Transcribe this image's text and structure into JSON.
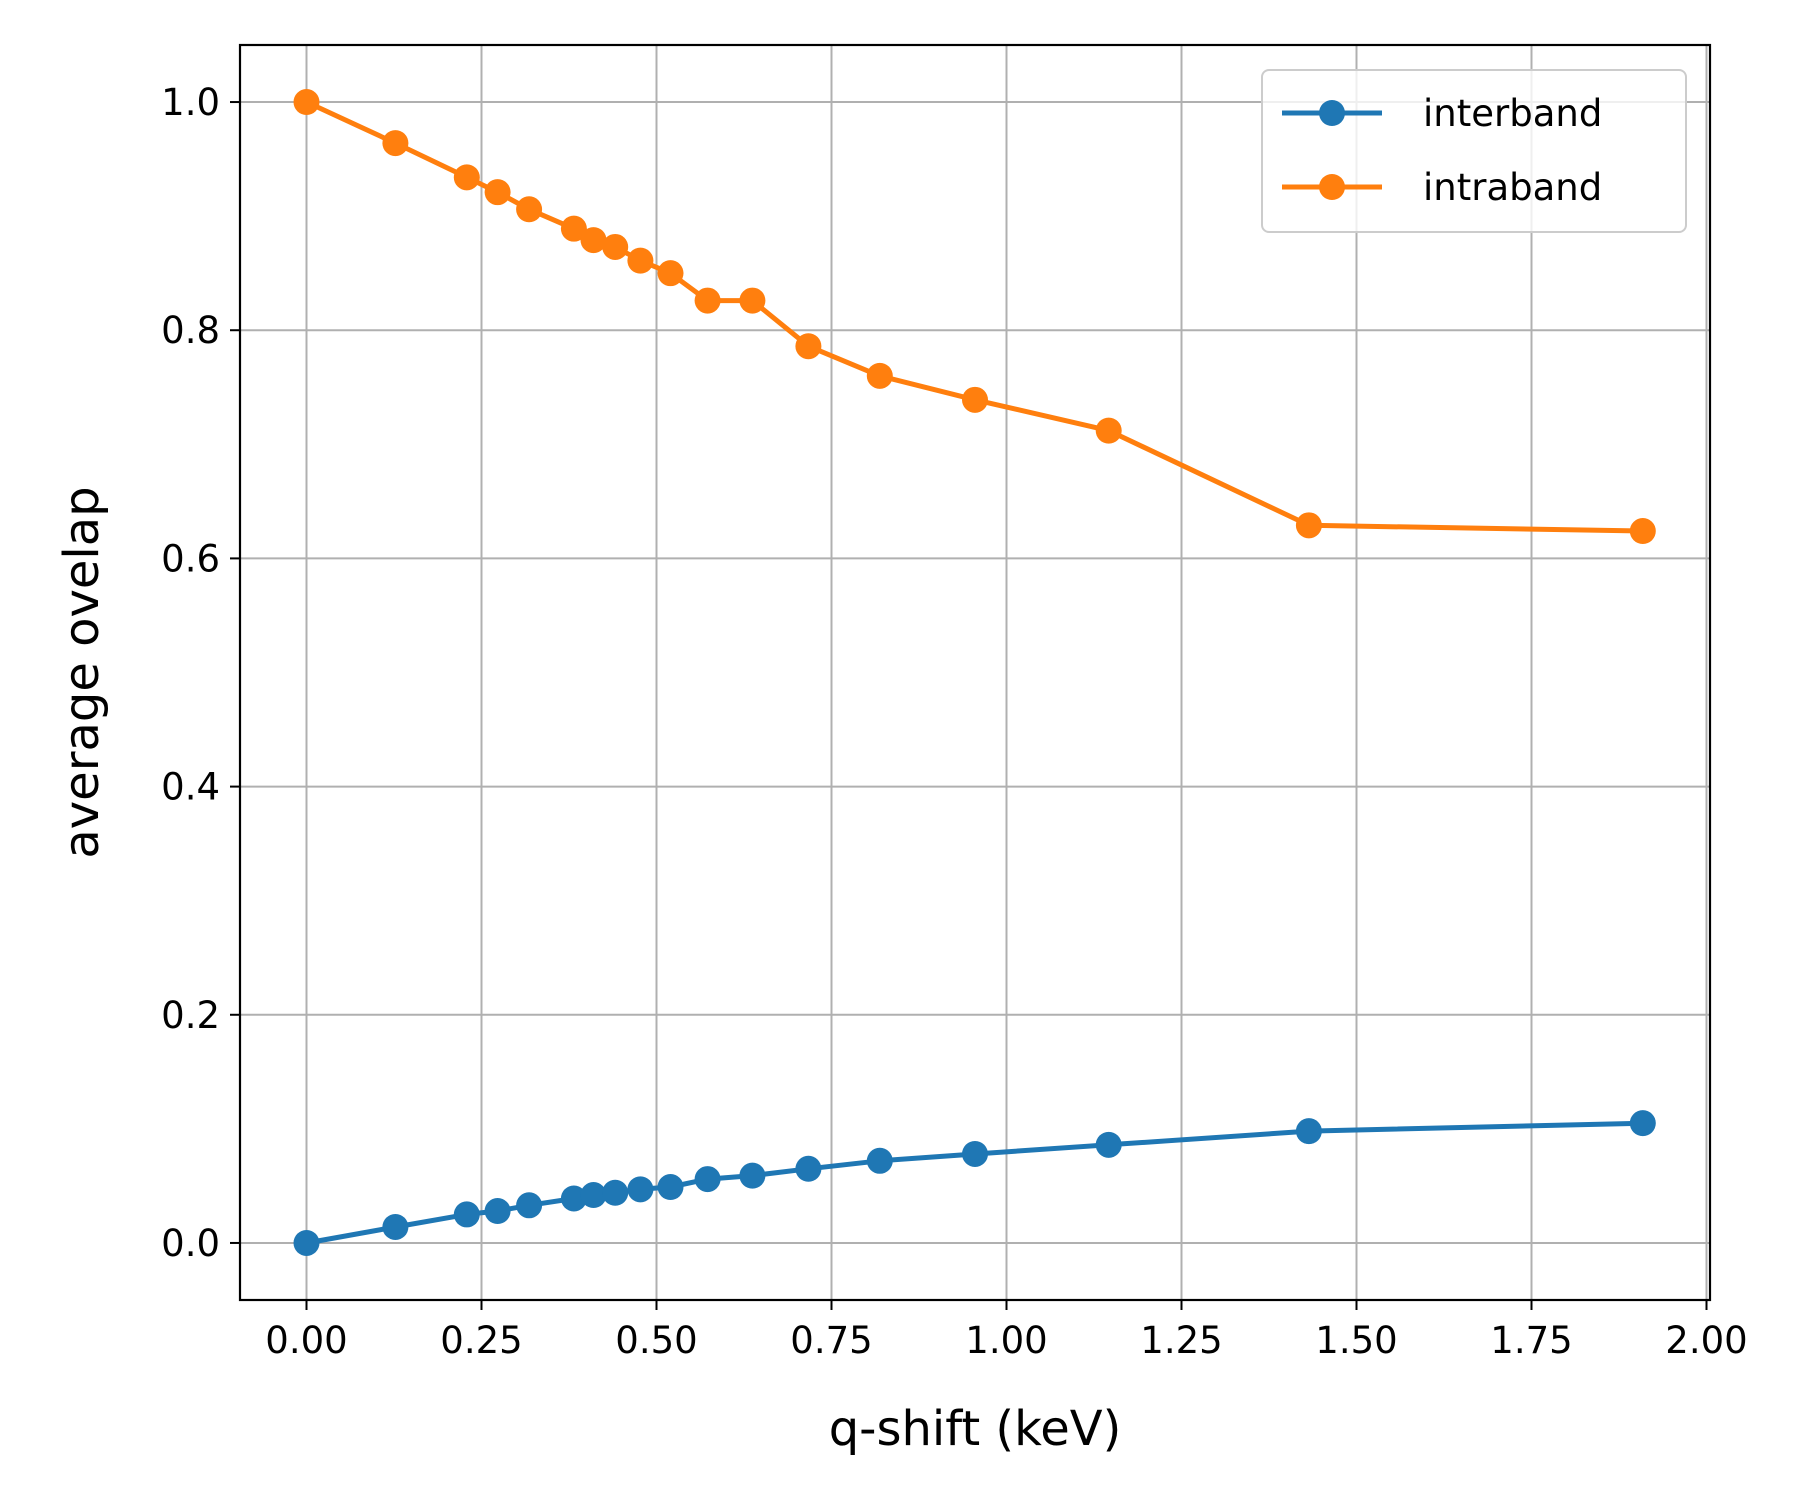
{
  "chart_data": {
    "type": "line",
    "xlabel": "q-shift (keV)",
    "ylabel": "average ovelap",
    "xlim": [
      -0.095,
      2.005
    ],
    "ylim": [
      -0.05,
      1.05
    ],
    "xticks": [
      0.0,
      0.25,
      0.5,
      0.75,
      1.0,
      1.25,
      1.5,
      1.75,
      2.0
    ],
    "xtick_labels": [
      "0.00",
      "0.25",
      "0.50",
      "0.75",
      "1.00",
      "1.25",
      "1.50",
      "1.75",
      "2.00"
    ],
    "yticks": [
      0.0,
      0.2,
      0.4,
      0.6,
      0.8,
      1.0
    ],
    "ytick_labels": [
      "0.0",
      "0.2",
      "0.4",
      "0.6",
      "0.8",
      "1.0"
    ],
    "grid": true,
    "legend_position": "top-right",
    "x": [
      0.0,
      0.127,
      0.229,
      0.273,
      0.318,
      0.382,
      0.41,
      0.441,
      0.477,
      0.52,
      0.573,
      0.637,
      0.717,
      0.819,
      0.955,
      1.146,
      1.432,
      1.909
    ],
    "series": [
      {
        "name": "interband",
        "color": "#1f77b4",
        "values": [
          0.0,
          0.014,
          0.025,
          0.028,
          0.033,
          0.039,
          0.042,
          0.044,
          0.047,
          0.049,
          0.056,
          0.059,
          0.065,
          0.072,
          0.078,
          0.086,
          0.098,
          0.105
        ]
      },
      {
        "name": "intraband",
        "color": "#ff7f0e",
        "values": [
          1.0,
          0.964,
          0.934,
          0.921,
          0.906,
          0.889,
          0.879,
          0.873,
          0.861,
          0.85,
          0.826,
          0.826,
          0.786,
          0.76,
          0.739,
          0.712,
          0.629,
          0.624
        ]
      }
    ]
  }
}
